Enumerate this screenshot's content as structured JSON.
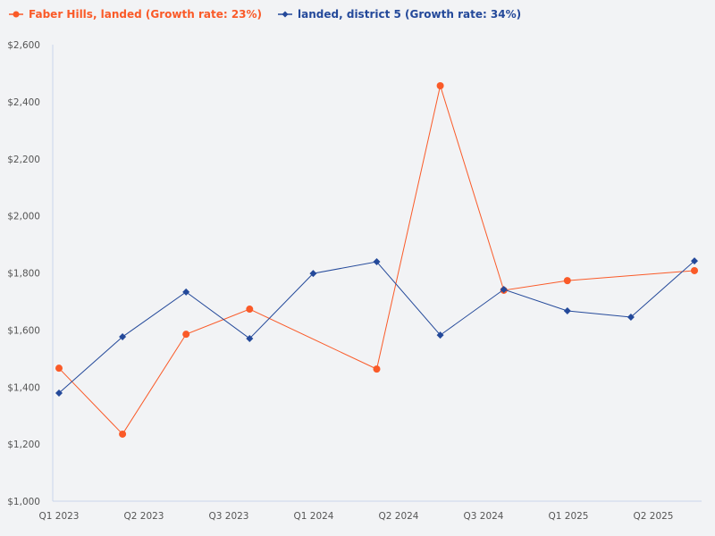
{
  "chart_data": {
    "type": "line",
    "title": "",
    "xlabel": "",
    "ylabel": "",
    "x_tick_labels": [
      "Q1 2023",
      "Q2 2023",
      "Q3 2023",
      "Q1 2024",
      "Q2 2024",
      "Q3 2024",
      "Q1 2025",
      "Q2 2025"
    ],
    "y_tick_labels": [
      "$1,000",
      "$1,200",
      "$1,400",
      "$1,600",
      "$1,800",
      "$2,000",
      "$2,200",
      "$2,400",
      "$2,600"
    ],
    "ylim": [
      1000,
      2600
    ],
    "grid": false,
    "legend": "top-left",
    "series": [
      {
        "name": "Faber Hills, landed (Growth rate: 23%)",
        "color": "#fa5a28",
        "marker": "circle",
        "values": [
          1466,
          1235,
          1585,
          1673,
          null,
          1463,
          2456,
          1739,
          1773,
          null,
          1808
        ]
      },
      {
        "name": "landed, district 5 (Growth rate: 34%)",
        "color": "#24499a",
        "marker": "diamond",
        "values": [
          1379,
          1576,
          1733,
          1570,
          1798,
          1839,
          1582,
          1742,
          1667,
          1645,
          1842
        ]
      }
    ]
  }
}
